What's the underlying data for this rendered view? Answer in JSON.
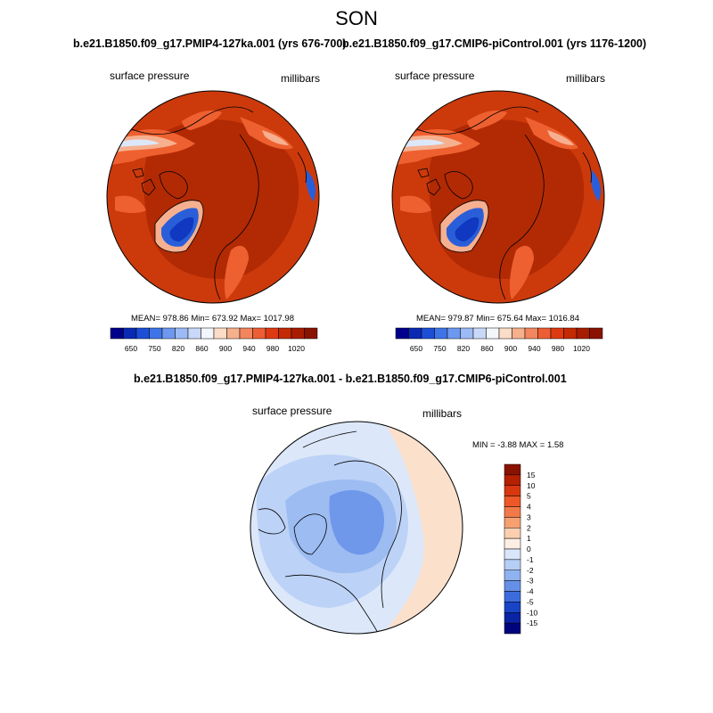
{
  "title": "SON",
  "panels": [
    {
      "case_title": "b.e21.B1850.f09_g17.PMIP4-127ka.001 (yrs 676-700)",
      "variable": "surface pressure",
      "units": "millibars",
      "stats": "MEAN= 978.86  Min= 673.92  Max= 1017.98"
    },
    {
      "case_title": "b.e21.B1850.f09_g17.CMIP6-piControl.001 (yrs 1176-1200)",
      "variable": "surface pressure",
      "units": "millibars",
      "stats": "MEAN= 979.87  Min= 675.64  Max= 1016.84"
    }
  ],
  "abs_colorbar": {
    "labels": [
      "650",
      "750",
      "820",
      "860",
      "900",
      "940",
      "980",
      "1020"
    ],
    "colors": [
      "#00008c",
      "#0a2ab4",
      "#1c4fd6",
      "#3f74e8",
      "#6d98f0",
      "#9cbaf5",
      "#c8d8f8",
      "#f3f6fb",
      "#fbdcc6",
      "#f6b08c",
      "#f2865e",
      "#ee5e34",
      "#de3a12",
      "#c42a04",
      "#a81d00",
      "#8a1200"
    ]
  },
  "diff_panel": {
    "case_title": "b.e21.B1850.f09_g17.PMIP4-127ka.001 - b.e21.B1850.f09_g17.CMIP6-piControl.001",
    "variable": "surface pressure",
    "units": "millibars",
    "stats": "MIN =  -3.88 MAX =   1.58"
  },
  "diff_colorbar": {
    "labels": [
      "15",
      "10",
      "5",
      "4",
      "3",
      "2",
      "1",
      "0",
      "-1",
      "-2",
      "-3",
      "-4",
      "-5",
      "-10",
      "-15"
    ],
    "colors": [
      "#8a1200",
      "#b42000",
      "#d83810",
      "#ee5828",
      "#f27a48",
      "#f6a070",
      "#fbd0b0",
      "#fbeee4",
      "#d9e6fa",
      "#b6cdf6",
      "#8fb2f0",
      "#6690e8",
      "#3c6cdc",
      "#1a44c6",
      "#0a24a4",
      "#00047c"
    ]
  },
  "map_colors": {
    "abs_base": "#cc3a0c",
    "abs_high": "#b22a04",
    "abs_mid": "#ee6030",
    "abs_light": "#f6b090",
    "abs_pale": "#dce8fa",
    "abs_low": "#2a5ed8",
    "abs_lowest": "#1038c0",
    "diff_pos": "#fbe0cc",
    "diff_zero": "#dce8fa",
    "diff_neg1": "#bcd2f6",
    "diff_neg2": "#9cbcf2",
    "diff_neg3": "#6f97ea",
    "coast": "#000000"
  }
}
